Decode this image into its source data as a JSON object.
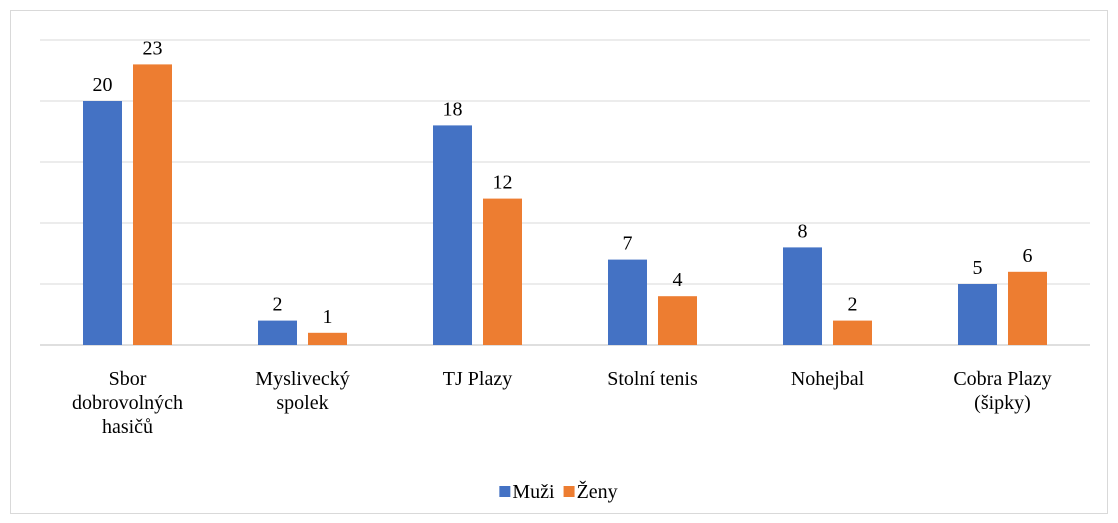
{
  "chart_data": {
    "type": "bar",
    "categories": [
      "Sbor dobrovolných hasičů",
      "Myslivecký spolek",
      "TJ Plazy",
      "Stolní tenis",
      "Nohejbal",
      "Cobra Plazy (šipky)"
    ],
    "series": [
      {
        "name": "Muži",
        "color": "#4472c4",
        "values": [
          20,
          2,
          18,
          7,
          8,
          5
        ]
      },
      {
        "name": "Ženy",
        "color": "#ed7d31",
        "values": [
          23,
          1,
          12,
          4,
          2,
          6
        ]
      }
    ],
    "ylim": [
      0,
      25
    ],
    "yticks": [
      0,
      5,
      10,
      15,
      20,
      25
    ],
    "grid": true,
    "legend": "bottom"
  }
}
